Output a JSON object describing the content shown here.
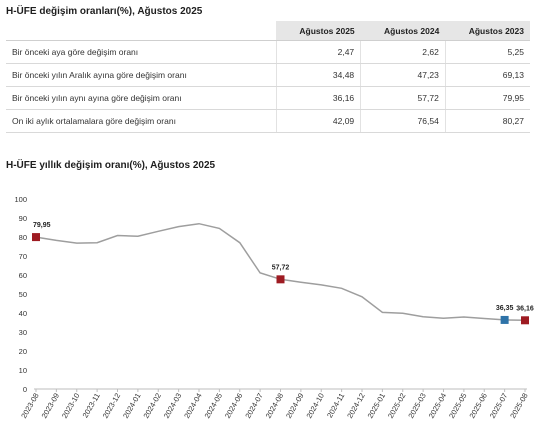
{
  "table": {
    "title": "H-ÜFE değişim oranları(%), Ağustos 2025",
    "headers": [
      "Ağustos 2025",
      "Ağustos 2024",
      "Ağustos 2023"
    ],
    "rows": [
      {
        "label": "Bir önceki aya göre değişim oranı",
        "values": [
          "2,47",
          "2,62",
          "5,25"
        ]
      },
      {
        "label": "Bir önceki yılın Aralık ayına göre değişim oranı",
        "values": [
          "34,48",
          "47,23",
          "69,13"
        ]
      },
      {
        "label": "Bir önceki yılın aynı ayına göre değişim oranı",
        "values": [
          "36,16",
          "57,72",
          "79,95"
        ]
      },
      {
        "label": "On iki aylık ortalamalara göre değişim oranı",
        "values": [
          "42,09",
          "76,54",
          "80,27"
        ]
      }
    ]
  },
  "chart_data": {
    "type": "line",
    "title": "H-ÜFE yıllık değişim oranı(%), Ağustos 2025",
    "xlabel": "",
    "ylabel": "",
    "ylim": [
      0,
      100
    ],
    "yticks": [
      0,
      10,
      20,
      30,
      40,
      50,
      60,
      70,
      80,
      90,
      100
    ],
    "grid": false,
    "categories": [
      "2023-08",
      "2023-09",
      "2023-10",
      "2023-11",
      "2023-12",
      "2024-01",
      "2024-02",
      "2024-03",
      "2024-04",
      "2024-05",
      "2024-06",
      "2024-07",
      "2024-08",
      "2024-09",
      "2024-10",
      "2024-11",
      "2024-12",
      "2025-01",
      "2025-02",
      "2025-03",
      "2025-04",
      "2025-05",
      "2025-06",
      "2025-07",
      "2025-08"
    ],
    "series": [
      {
        "values": [
          79.95,
          78.2,
          76.8,
          77.0,
          80.8,
          80.4,
          83.0,
          85.5,
          87.0,
          84.5,
          77.0,
          61.1,
          57.72,
          56.2,
          54.8,
          53.0,
          48.5,
          40.3,
          39.9,
          38.0,
          37.2,
          37.9,
          37.1,
          36.35,
          36.16
        ],
        "color": "#9e9e9e"
      }
    ],
    "markers": [
      {
        "category": "2023-08",
        "value": 79.95,
        "label": "79,95",
        "color": "#9e1b22"
      },
      {
        "category": "2024-08",
        "value": 57.72,
        "label": "57,72",
        "color": "#9e1b22"
      },
      {
        "category": "2025-07",
        "value": 36.35,
        "label": "36,35",
        "color": "#2e73a8"
      },
      {
        "category": "2025-08",
        "value": 36.16,
        "label": "36,16",
        "color": "#9e1b22"
      }
    ]
  }
}
